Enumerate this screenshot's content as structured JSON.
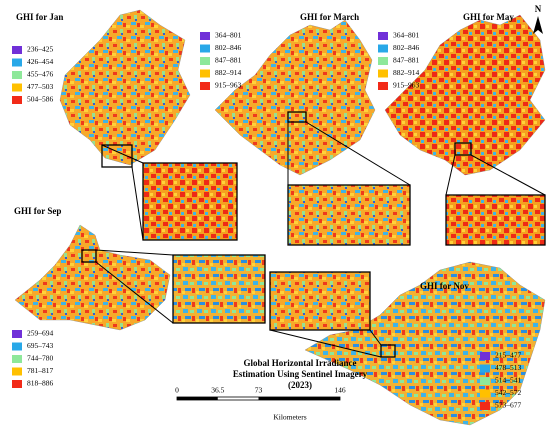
{
  "panels": [
    {
      "title": "GHI for Jan",
      "legend": [
        {
          "label": "236–425",
          "color": "#7030d8"
        },
        {
          "label": "426–454",
          "color": "#28a8e8"
        },
        {
          "label": "455–476",
          "color": "#8ee89a"
        },
        {
          "label": "477–503",
          "color": "#ffc000"
        },
        {
          "label": "504–586",
          "color": "#f22a18"
        }
      ]
    },
    {
      "title": "GHI for March",
      "legend": [
        {
          "label": "364–801",
          "color": "#7030d8"
        },
        {
          "label": "802–846",
          "color": "#28a8e8"
        },
        {
          "label": "847–881",
          "color": "#8ee89a"
        },
        {
          "label": "882–914",
          "color": "#ffc000"
        },
        {
          "label": "915–963",
          "color": "#f22a18"
        }
      ]
    },
    {
      "title": "GHI for May",
      "legend": [
        {
          "label": "364–801",
          "color": "#7030d8"
        },
        {
          "label": "802–846",
          "color": "#28a8e8"
        },
        {
          "label": "847–881",
          "color": "#8ee89a"
        },
        {
          "label": "882–914",
          "color": "#ffc000"
        },
        {
          "label": "915–963",
          "color": "#f22a18"
        }
      ]
    },
    {
      "title": "GHI for Sep",
      "legend": [
        {
          "label": "259–694",
          "color": "#7030d8"
        },
        {
          "label": "695–743",
          "color": "#28a8e8"
        },
        {
          "label": "744–780",
          "color": "#8ee89a"
        },
        {
          "label": "781–817",
          "color": "#ffc000"
        },
        {
          "label": "818–886",
          "color": "#f22a18"
        }
      ]
    },
    {
      "title": "GHI for Nov",
      "legend": [
        {
          "label": "215–477",
          "color": "#7030d8"
        },
        {
          "label": "478–513",
          "color": "#28a8e8"
        },
        {
          "label": "514–541",
          "color": "#8ee89a"
        },
        {
          "label": "542–572",
          "color": "#ffc000"
        },
        {
          "label": "573–677",
          "color": "#f22a18"
        }
      ]
    }
  ],
  "title": [
    "Global Horizontal Irradiance",
    "Estimation Using Sentinel Imagery",
    "(2023)"
  ],
  "scale_bar": {
    "ticks": [
      "0",
      "36.5",
      "73",
      "146"
    ],
    "unit": "Kilometers"
  },
  "north": "N"
}
